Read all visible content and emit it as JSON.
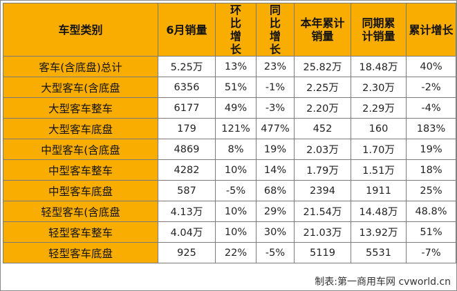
{
  "table": {
    "headers": [
      "车型类别",
      "6月销量",
      "环比增长",
      "同比增长",
      "本年累计销量",
      "同期累计销量",
      "累计增长"
    ],
    "rows": [
      {
        "name": "客车(含底盘)总计",
        "june": "5.25万",
        "mom": "13%",
        "yoy": "23%",
        "ytd": "25.82万",
        "prev_ytd": "18.48万",
        "cum": "40%"
      },
      {
        "name": "大型客车(含底盘",
        "june": "6356",
        "mom": "51%",
        "yoy": "-1%",
        "ytd": "2.25万",
        "prev_ytd": "2.30万",
        "cum": "-2%"
      },
      {
        "name": "大型客车整车",
        "june": "6177",
        "mom": "49%",
        "yoy": "-3%",
        "ytd": "2.20万",
        "prev_ytd": "2.29万",
        "cum": "-4%"
      },
      {
        "name": "大型客车底盘",
        "june": "179",
        "mom": "121%",
        "yoy": "477%",
        "ytd": "452",
        "prev_ytd": "160",
        "cum": "183%"
      },
      {
        "name": "中型客车(含底盘",
        "june": "4869",
        "mom": "8%",
        "yoy": "19%",
        "ytd": "2.03万",
        "prev_ytd": "1.70万",
        "cum": "19%"
      },
      {
        "name": "中型客车整车",
        "june": "4282",
        "mom": "10%",
        "yoy": "14%",
        "ytd": "1.79万",
        "prev_ytd": "1.51万",
        "cum": "18%"
      },
      {
        "name": "中型客车底盘",
        "june": "587",
        "mom": "-5%",
        "yoy": "68%",
        "ytd": "2394",
        "prev_ytd": "1911",
        "cum": "25%"
      },
      {
        "name": "轻型客车(含底盘",
        "june": "4.13万",
        "mom": "10%",
        "yoy": "29%",
        "ytd": "21.54万",
        "prev_ytd": "14.48万",
        "cum": "48.8%"
      },
      {
        "name": "轻型客车整车",
        "june": "4.04万",
        "mom": "10%",
        "yoy": "30%",
        "ytd": "21.03万",
        "prev_ytd": "13.92万",
        "cum": "51%"
      },
      {
        "name": "轻型客车底盘",
        "june": "925",
        "mom": "22%",
        "yoy": "-5%",
        "ytd": "5119",
        "prev_ytd": "5531",
        "cum": "-7%"
      }
    ]
  },
  "footer": "制表:第一商用车网 cvworld.cn",
  "colors": {
    "header_bg": "#f9ad00",
    "border": "#7a7a7a"
  }
}
